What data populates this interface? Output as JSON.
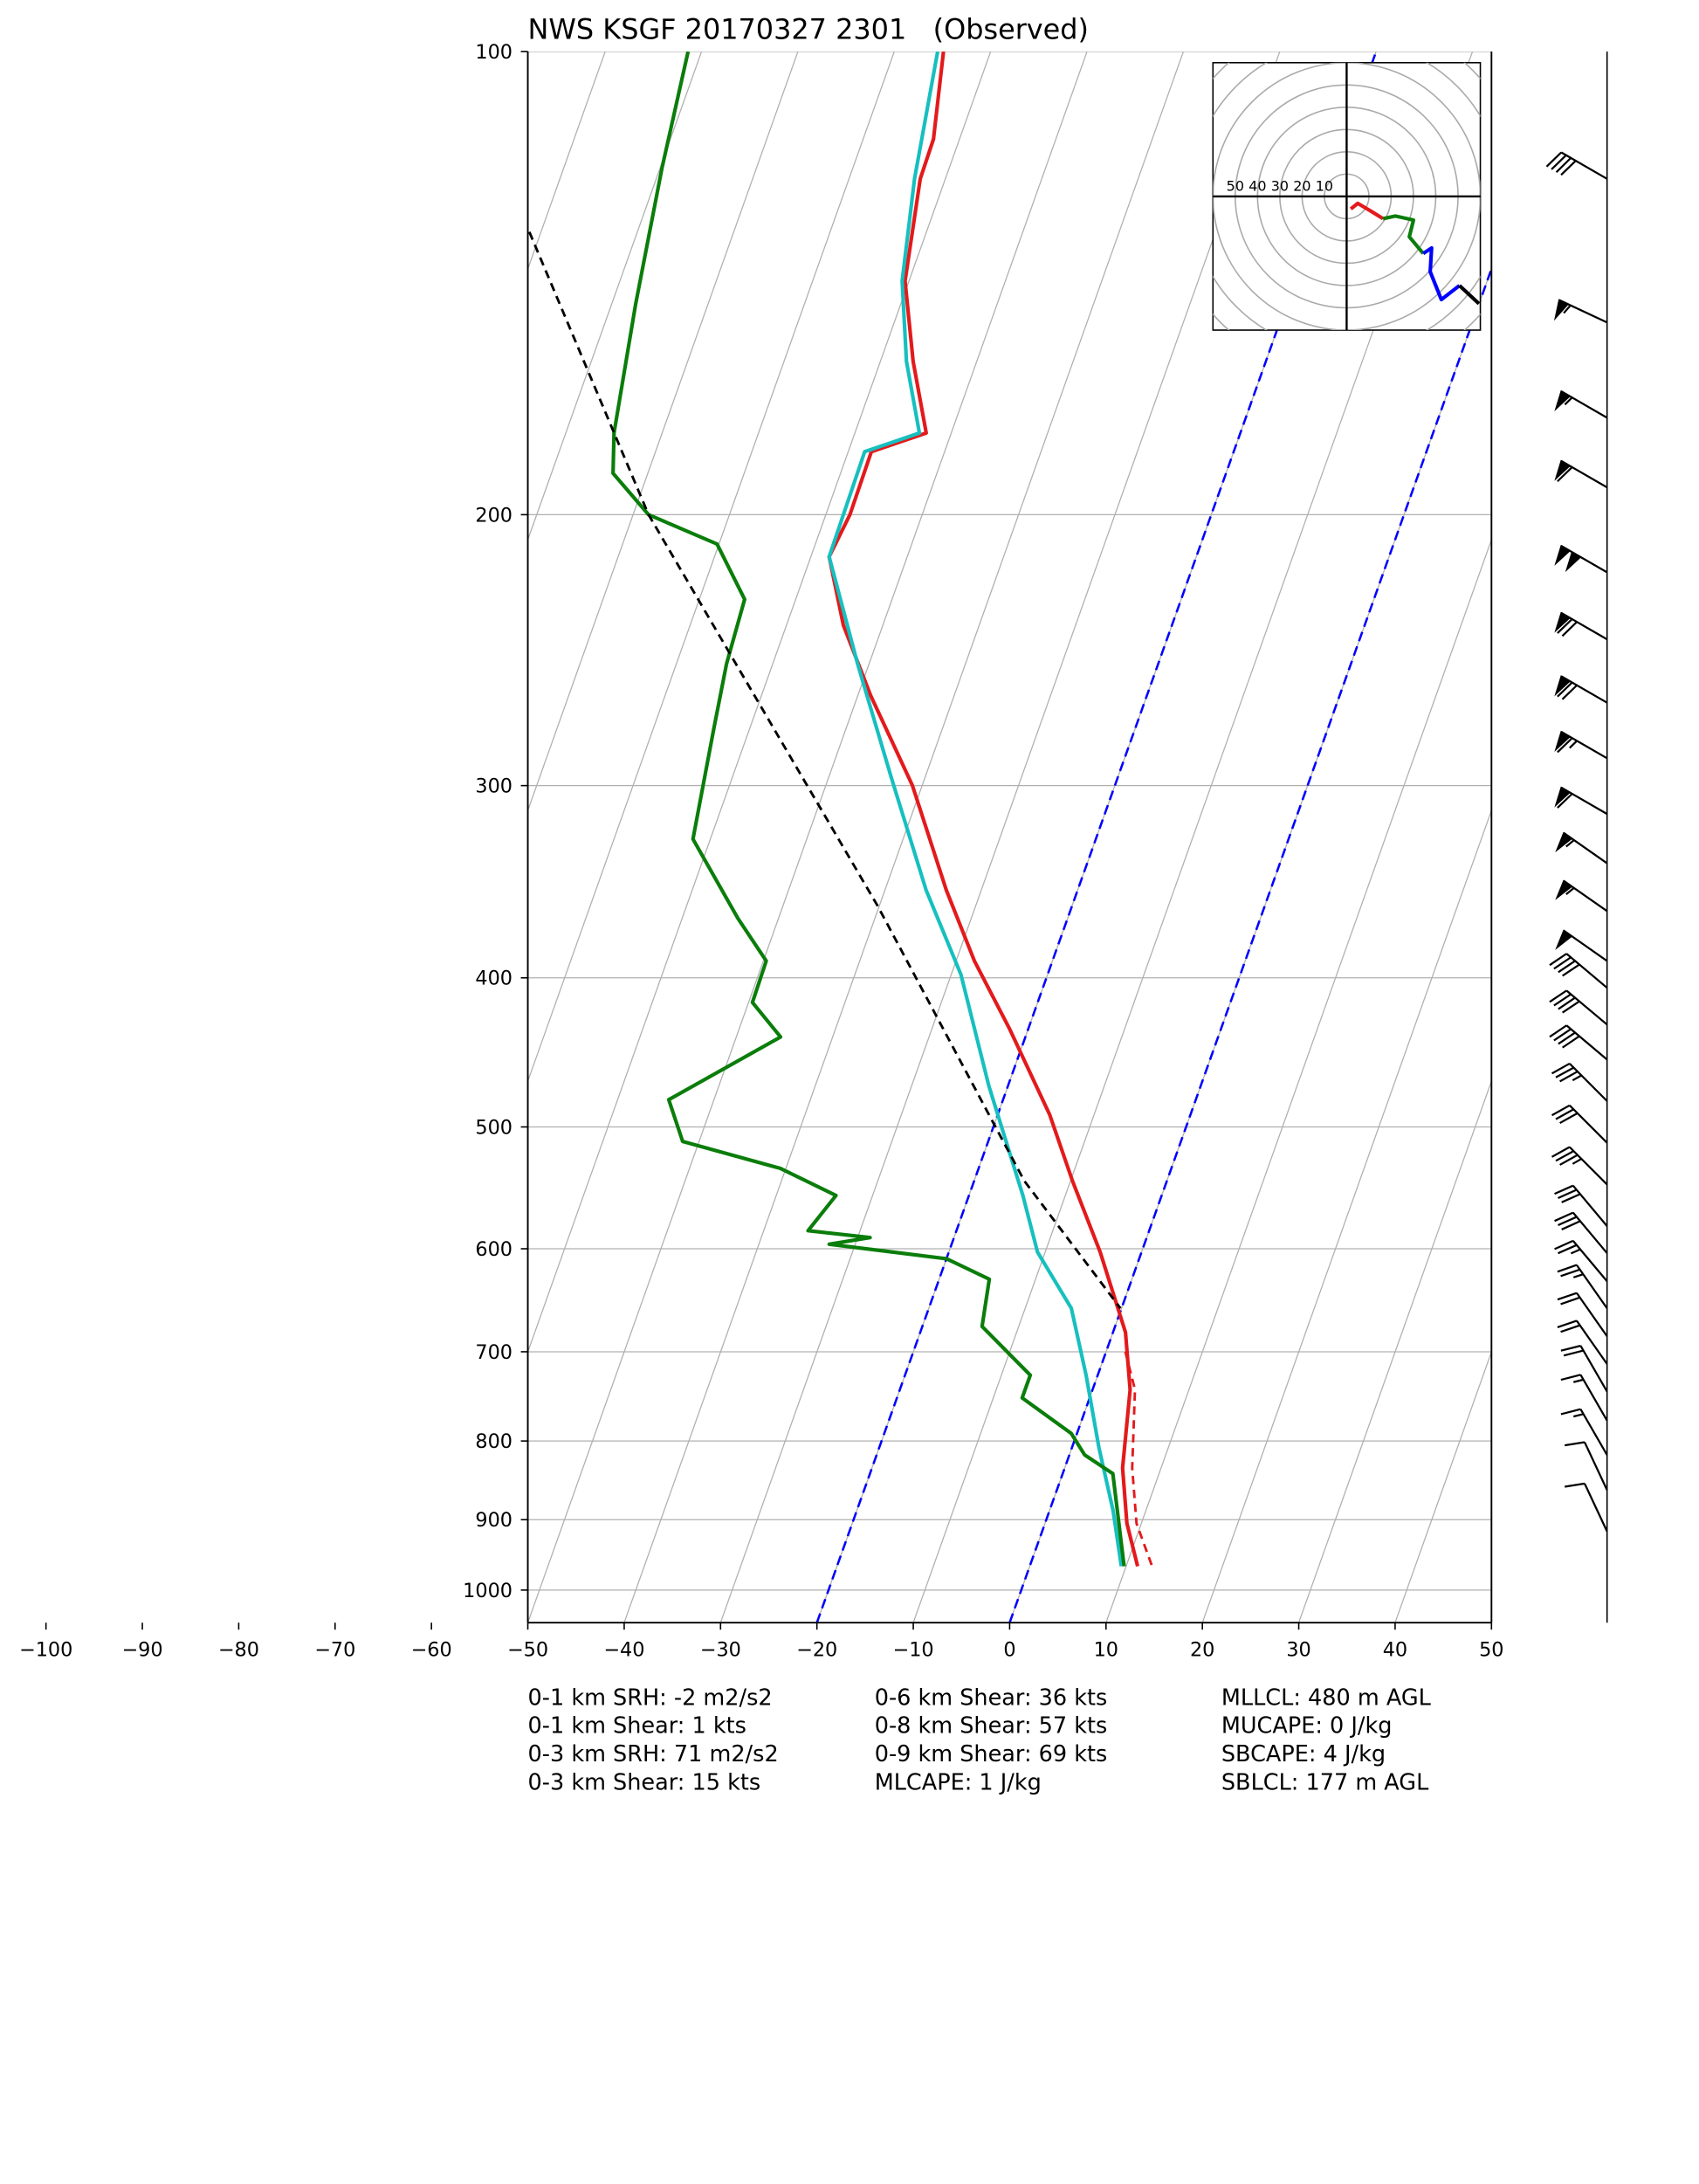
{
  "chart_data": {
    "type": "skewt",
    "title": "NWS KSGF 20170327 2301   (Observed)",
    "ylim": [
      1050,
      100
    ],
    "yticks": [
      100,
      200,
      300,
      400,
      500,
      600,
      700,
      800,
      900,
      1000
    ],
    "xlim": [
      -50,
      50
    ],
    "xticks": [
      {
        "value": -100,
        "label": "−100"
      },
      {
        "value": -90,
        "label": "−90"
      },
      {
        "value": -80,
        "label": "−80"
      },
      {
        "value": -70,
        "label": "−70"
      },
      {
        "value": -60,
        "label": "−60"
      },
      {
        "value": -50,
        "label": "−50"
      },
      {
        "value": -40,
        "label": "−40"
      },
      {
        "value": -30,
        "label": "−30"
      },
      {
        "value": -20,
        "label": "−20"
      },
      {
        "value": -10,
        "label": "−10"
      },
      0,
      10,
      20,
      30,
      40,
      50
    ],
    "log_scale": "y",
    "grid": true,
    "highlight_isotherms": {
      "values": [
        -20,
        0
      ],
      "color": "#0000ff"
    },
    "series": [
      {
        "color": "#e31a1c",
        "dashed": false,
        "pressure": [
          100,
          114,
          121,
          141,
          159,
          177,
          182,
          200,
          213,
          236,
          262,
          300,
          351,
          390,
          432,
          491,
          542,
          603,
          680,
          741,
          833,
          905,
          965
        ],
        "values": [
          -64.9,
          -62.7,
          -62.6,
          -60.4,
          -56.6,
          -52.6,
          -57.6,
          -57.5,
          -58.1,
          -54.1,
          -48.7,
          -41,
          -33.6,
          -28.1,
          -21.9,
          -14.6,
          -9.8,
          -4.3,
          1.3,
          3.9,
          6,
          8.5,
          11.2
        ]
      },
      {
        "color": "#e31a1c",
        "dashed": true,
        "pressure": [
          700,
          741,
          833,
          905,
          965
        ],
        "values": [
          2,
          4.4,
          7,
          9.5,
          12.7
        ]
      },
      {
        "color": "#17bfbf",
        "dashed": false,
        "pressure": [
          100,
          121,
          141,
          159,
          177,
          182,
          213,
          250,
          297,
          351,
          398,
          470,
          554,
          603,
          656,
          725,
          808,
          888,
          965
        ],
        "values": [
          -65.5,
          -63.2,
          -60.7,
          -57.3,
          -53.3,
          -58.3,
          -58.1,
          -51.2,
          -43.4,
          -35.7,
          -29,
          -22,
          -14.4,
          -10.8,
          -5.2,
          -1.2,
          2.8,
          6.6,
          9.5
        ]
      },
      {
        "color": "#0a7d0a",
        "dashed": false,
        "pressure": [
          100,
          119,
          146,
          177,
          188,
          200,
          209,
          227,
          250,
          276,
          325,
          366,
          390,
          415,
          437,
          480,
          511,
          532,
          554,
          584,
          590,
          596,
          609,
          628,
          674,
          725,
          750,
          791,
          817,
          840,
          965
        ],
        "values": [
          -91.4,
          -89.8,
          -87.5,
          -85,
          -83.6,
          -78.4,
          -70.2,
          -65.3,
          -64.8,
          -63.7,
          -61.8,
          -54.2,
          -49.7,
          -49.6,
          -45.4,
          -54.7,
          -51.7,
          -40.6,
          -33.8,
          -35.4,
          -28.7,
          -32.7,
          -20,
          -14.8,
          -13.8,
          -7,
          -7,
          -0.6,
          1.6,
          5.2,
          9.8
        ]
      },
      {
        "color": "#000000",
        "dashed": true,
        "pressure": [
          131,
          200,
          359,
          542,
          656
        ],
        "values": [
          -101.2,
          -78.4,
          -40.2,
          -14.8,
          -0.1
        ]
      }
    ],
    "barbs": {
      "pressure": [
        121,
        150,
        173,
        192,
        218,
        241,
        265,
        288,
        313,
        337,
        362,
        390,
        406,
        429,
        452,
        481,
        512,
        545,
        580,
        604,
        630,
        656,
        684,
        713,
        743,
        776,
        817,
        861,
        916
      ],
      "speed": [
        40,
        55,
        55,
        60,
        100,
        70,
        70,
        65,
        60,
        55,
        55,
        50,
        40,
        40,
        40,
        35,
        30,
        35,
        30,
        30,
        25,
        25,
        20,
        20,
        20,
        15,
        15,
        10,
        10
      ],
      "direction": [
        300,
        295,
        300,
        300,
        300,
        300,
        300,
        300,
        300,
        305,
        305,
        305,
        310,
        310,
        310,
        315,
        315,
        315,
        320,
        320,
        320,
        325,
        325,
        325,
        330,
        330,
        330,
        335,
        335
      ]
    },
    "hodograph": {
      "rings": [
        50,
        40,
        30,
        20,
        10
      ],
      "segments": [
        {
          "color": "#e31a1c",
          "u": [
            1.9,
            5,
            11.3,
            16.3
          ],
          "v": [
            -5.6,
            -3.1,
            -6.9,
            -10
          ]
        },
        {
          "color": "#0a7d0a",
          "u": [
            16.3,
            21.9,
            30,
            28.1,
            34.4
          ],
          "v": [
            -10,
            -8.8,
            -10.6,
            -18.1,
            -25.6
          ]
        },
        {
          "color": "#0000ff",
          "u": [
            34.4,
            38.1,
            37.5,
            42.5,
            50.6
          ],
          "v": [
            -25.6,
            -23.1,
            -33.8,
            -46.3,
            -40
          ]
        },
        {
          "color": "#000000",
          "u": [
            50.6,
            59.4
          ],
          "v": [
            -40,
            -48.1
          ]
        }
      ]
    },
    "stats": [
      [
        "0-1 km SRH: -2 m2/s2",
        "0-1 km Shear: 1 kts",
        "0-3 km SRH: 71 m2/s2",
        "0-3 km Shear: 15 kts"
      ],
      [
        "0-6 km Shear: 36 kts",
        "0-8 km Shear: 57 kts",
        "0-9 km Shear: 69 kts",
        "MLCAPE: 1 J/kg"
      ],
      [
        "MLLCL: 480 m AGL",
        "MUCAPE: 0 J/kg",
        "SBCAPE: 4 J/kg",
        "SBLCL: 177 m AGL"
      ]
    ]
  }
}
